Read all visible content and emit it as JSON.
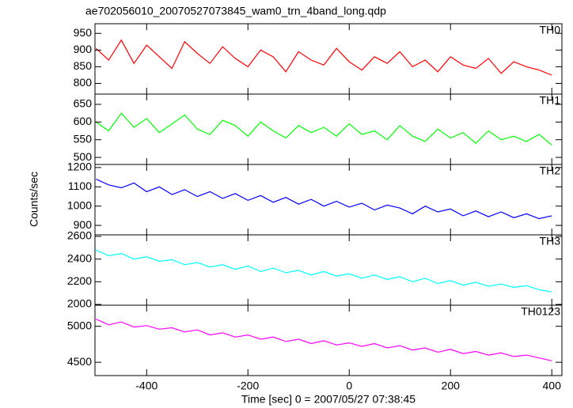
{
  "title": "ae702056010_20070527073845_wam0_trn_4band_long.qdp",
  "xlabel": "Time [sec] 0 = 2007/05/27 07:38:45",
  "ylabel": "Counts/sec",
  "chart_data": [
    {
      "type": "line",
      "name": "TH0",
      "color": "#ff0000",
      "x": [
        -500,
        -475,
        -450,
        -425,
        -400,
        -375,
        -350,
        -325,
        -300,
        -275,
        -250,
        -225,
        -200,
        -175,
        -150,
        -125,
        -100,
        -75,
        -50,
        -25,
        0,
        25,
        50,
        75,
        100,
        125,
        150,
        175,
        200,
        225,
        250,
        275,
        300,
        325,
        350,
        375,
        400
      ],
      "values": [
        905,
        870,
        930,
        860,
        915,
        880,
        845,
        925,
        890,
        860,
        910,
        875,
        850,
        900,
        880,
        835,
        895,
        870,
        855,
        905,
        865,
        840,
        880,
        860,
        895,
        850,
        870,
        835,
        880,
        855,
        845,
        875,
        830,
        865,
        850,
        840,
        825
      ],
      "xlim": [
        -502,
        420
      ],
      "xticks": [
        -400,
        -200,
        0,
        200,
        400
      ],
      "ylim": [
        768,
        979
      ],
      "yticks": [
        800,
        850,
        900,
        950
      ]
    },
    {
      "type": "line",
      "name": "TH1",
      "color": "#00ff00",
      "x": [
        -500,
        -475,
        -450,
        -425,
        -400,
        -375,
        -350,
        -325,
        -300,
        -275,
        -250,
        -225,
        -200,
        -175,
        -150,
        -125,
        -100,
        -75,
        -50,
        -25,
        0,
        25,
        50,
        75,
        100,
        125,
        150,
        175,
        200,
        225,
        250,
        275,
        300,
        325,
        350,
        375,
        400
      ],
      "values": [
        600,
        575,
        625,
        585,
        610,
        570,
        595,
        620,
        580,
        565,
        605,
        590,
        560,
        600,
        575,
        555,
        590,
        570,
        585,
        560,
        595,
        565,
        575,
        550,
        590,
        560,
        545,
        580,
        555,
        570,
        540,
        575,
        550,
        560,
        545,
        565,
        535
      ],
      "xlim": [
        -502,
        420
      ],
      "xticks": [
        -400,
        -200,
        0,
        200,
        400
      ],
      "ylim": [
        480,
        679
      ],
      "yticks": [
        500,
        550,
        600,
        650
      ]
    },
    {
      "type": "line",
      "name": "TH2",
      "color": "#0000ff",
      "x": [
        -500,
        -475,
        -450,
        -425,
        -400,
        -375,
        -350,
        -325,
        -300,
        -275,
        -250,
        -225,
        -200,
        -175,
        -150,
        -125,
        -100,
        -75,
        -50,
        -25,
        0,
        25,
        50,
        75,
        100,
        125,
        150,
        175,
        200,
        225,
        250,
        275,
        300,
        325,
        350,
        375,
        400
      ],
      "values": [
        1140,
        1110,
        1095,
        1120,
        1075,
        1100,
        1060,
        1085,
        1050,
        1075,
        1040,
        1065,
        1030,
        1055,
        1020,
        1045,
        1010,
        1035,
        1000,
        1025,
        995,
        1015,
        980,
        1005,
        990,
        960,
        1000,
        970,
        985,
        950,
        975,
        945,
        970,
        940,
        960,
        935,
        950
      ],
      "xlim": [
        -502,
        420
      ],
      "xticks": [
        -400,
        -200,
        0,
        200,
        400
      ],
      "ylim": [
        851,
        1216
      ],
      "yticks": [
        900,
        1000,
        1100,
        1200
      ]
    },
    {
      "type": "line",
      "name": "TH3",
      "color": "#00ffff",
      "x": [
        -500,
        -475,
        -450,
        -425,
        -400,
        -375,
        -350,
        -325,
        -300,
        -275,
        -250,
        -225,
        -200,
        -175,
        -150,
        -125,
        -100,
        -75,
        -50,
        -25,
        0,
        25,
        50,
        75,
        100,
        125,
        150,
        175,
        200,
        225,
        250,
        275,
        300,
        325,
        350,
        375,
        400
      ],
      "values": [
        2480,
        2430,
        2450,
        2400,
        2420,
        2380,
        2395,
        2350,
        2370,
        2330,
        2350,
        2310,
        2340,
        2290,
        2320,
        2280,
        2300,
        2260,
        2290,
        2250,
        2270,
        2230,
        2260,
        2220,
        2245,
        2200,
        2230,
        2185,
        2210,
        2170,
        2195,
        2160,
        2180,
        2150,
        2165,
        2130,
        2110
      ],
      "xlim": [
        -502,
        420
      ],
      "xticks": [
        -400,
        -200,
        0,
        200,
        400
      ],
      "ylim": [
        1993,
        2614
      ],
      "yticks": [
        2000,
        2200,
        2400,
        2600
      ]
    },
    {
      "type": "line",
      "name": "TH0123",
      "color": "#ff00ff",
      "x": [
        -500,
        -475,
        -450,
        -425,
        -400,
        -375,
        -350,
        -325,
        -300,
        -275,
        -250,
        -225,
        -200,
        -175,
        -150,
        -125,
        -100,
        -75,
        -50,
        -25,
        0,
        25,
        50,
        75,
        100,
        125,
        150,
        175,
        200,
        225,
        250,
        275,
        300,
        325,
        350,
        375,
        400
      ],
      "values": [
        5100,
        5020,
        5060,
        4990,
        5010,
        4960,
        4980,
        4920,
        4950,
        4880,
        4910,
        4850,
        4880,
        4820,
        4850,
        4790,
        4820,
        4760,
        4800,
        4740,
        4770,
        4720,
        4760,
        4700,
        4730,
        4670,
        4700,
        4640,
        4680,
        4620,
        4650,
        4600,
        4630,
        4580,
        4600,
        4560,
        4520
      ],
      "xlim": [
        -502,
        420
      ],
      "xticks": [
        -400,
        -200,
        0,
        200,
        400
      ],
      "ylim": [
        4315,
        5293
      ],
      "yticks": [
        4500,
        5000
      ]
    }
  ]
}
